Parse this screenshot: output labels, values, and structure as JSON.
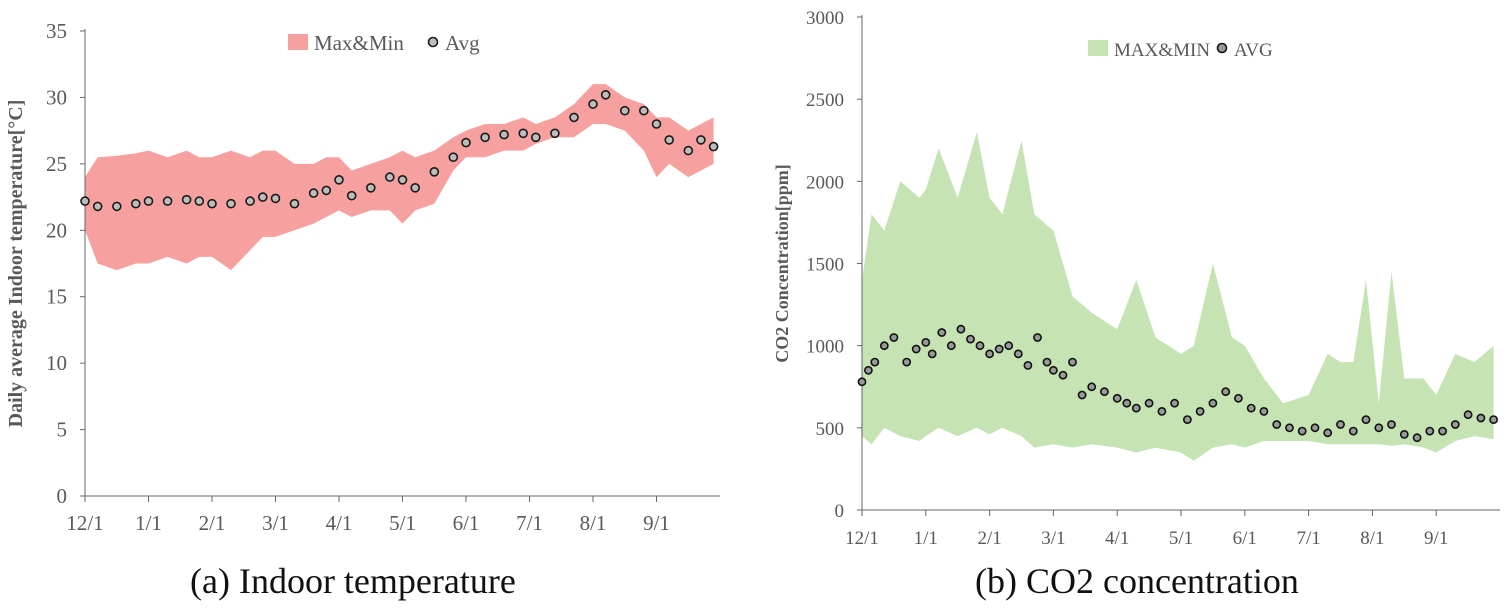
{
  "chart_data": [
    {
      "type": "area",
      "caption": "(a) Indoor temperature",
      "ylabel": "Daily average Indoor temperature[°C]",
      "xlabel": "",
      "ylim": [
        0,
        35
      ],
      "yticks": [
        0,
        5,
        10,
        15,
        20,
        25,
        30,
        35
      ],
      "xticks": [
        "12/1",
        "1/1",
        "2/1",
        "3/1",
        "4/1",
        "5/1",
        "6/1",
        "7/1",
        "8/1",
        "9/1"
      ],
      "x_domain": [
        0,
        10
      ],
      "grid": false,
      "legend": "top-center",
      "colors": {
        "band": "#f7a0a0",
        "marker": "#1a1a1a",
        "marker_fill": "#bdbdbd"
      },
      "series": [
        {
          "name": "Max&Min",
          "kind": "band",
          "x": [
            0,
            0.2,
            0.5,
            0.8,
            1.0,
            1.3,
            1.6,
            1.8,
            2.0,
            2.3,
            2.6,
            2.8,
            3.0,
            3.3,
            3.6,
            3.8,
            4.0,
            4.2,
            4.5,
            4.8,
            5.0,
            5.2,
            5.5,
            5.8,
            6.0,
            6.3,
            6.6,
            6.9,
            7.1,
            7.4,
            7.7,
            8.0,
            8.2,
            8.5,
            8.8,
            9.0,
            9.2,
            9.5,
            9.7,
            9.9
          ],
          "high": [
            24.0,
            25.5,
            25.6,
            25.8,
            26.0,
            25.5,
            26.0,
            25.5,
            25.5,
            26.0,
            25.5,
            26.0,
            26.0,
            25.0,
            25.0,
            25.5,
            25.5,
            24.5,
            25.0,
            25.5,
            26.0,
            25.5,
            26.0,
            27.0,
            27.5,
            28.0,
            28.0,
            28.5,
            28.0,
            28.5,
            29.5,
            31.0,
            31.0,
            30.0,
            29.5,
            28.5,
            28.5,
            27.5,
            28.0,
            28.5
          ],
          "low": [
            20.0,
            17.5,
            17.0,
            17.5,
            17.5,
            18.0,
            17.5,
            18.0,
            18.0,
            17.0,
            18.5,
            19.5,
            19.5,
            20.0,
            20.5,
            21.0,
            21.5,
            21.0,
            21.5,
            21.5,
            20.5,
            21.5,
            22.0,
            24.5,
            25.5,
            25.5,
            26.0,
            26.0,
            26.5,
            27.0,
            27.0,
            28.0,
            28.0,
            27.5,
            26.0,
            24.0,
            25.0,
            24.0,
            24.5,
            25.0
          ]
        },
        {
          "name": "Avg",
          "kind": "points",
          "x": [
            0,
            0.2,
            0.5,
            0.8,
            1.0,
            1.3,
            1.6,
            1.8,
            2.0,
            2.3,
            2.6,
            2.8,
            3.0,
            3.3,
            3.6,
            3.8,
            4.0,
            4.2,
            4.5,
            4.8,
            5.0,
            5.2,
            5.5,
            5.8,
            6.0,
            6.3,
            6.6,
            6.9,
            7.1,
            7.4,
            7.7,
            8.0,
            8.2,
            8.5,
            8.8,
            9.0,
            9.2,
            9.5,
            9.7,
            9.9
          ],
          "y": [
            22.2,
            21.8,
            21.8,
            22.0,
            22.2,
            22.2,
            22.3,
            22.2,
            22.0,
            22.0,
            22.2,
            22.5,
            22.4,
            22.0,
            22.8,
            23.0,
            23.8,
            22.6,
            23.2,
            24.0,
            23.8,
            23.2,
            24.4,
            25.5,
            26.6,
            27.0,
            27.2,
            27.3,
            27.0,
            27.3,
            28.5,
            29.5,
            30.2,
            29.0,
            29.0,
            28.0,
            26.8,
            26.0,
            26.8,
            26.3
          ]
        }
      ]
    },
    {
      "type": "area",
      "caption": "(b) CO2 concentration",
      "ylabel": "CO2 Concentration[ppm]",
      "xlabel": "",
      "ylim": [
        0,
        3000
      ],
      "yticks": [
        0,
        500,
        1000,
        1500,
        2000,
        2500,
        3000
      ],
      "xticks": [
        "12/1",
        "1/1",
        "2/1",
        "3/1",
        "4/1",
        "5/1",
        "6/1",
        "7/1",
        "8/1",
        "9/1"
      ],
      "x_domain": [
        0,
        10
      ],
      "grid": false,
      "legend": "top-center",
      "colors": {
        "band": "#c5e3b3",
        "marker": "#111111",
        "marker_fill": "#9a9a9a"
      },
      "series": [
        {
          "name": "MAX&MIN",
          "kind": "band",
          "x": [
            0,
            0.15,
            0.35,
            0.6,
            0.9,
            1.0,
            1.2,
            1.5,
            1.8,
            2.0,
            2.2,
            2.5,
            2.7,
            3.0,
            3.3,
            3.6,
            4.0,
            4.3,
            4.6,
            5.0,
            5.2,
            5.5,
            5.8,
            6.0,
            6.3,
            6.6,
            7.0,
            7.3,
            7.5,
            7.7,
            7.9,
            8.1,
            8.3,
            8.5,
            8.8,
            9.0,
            9.3,
            9.6,
            9.9
          ],
          "high": [
            1400,
            1800,
            1700,
            2000,
            1900,
            1950,
            2200,
            1900,
            2300,
            1900,
            1800,
            2250,
            1800,
            1700,
            1300,
            1200,
            1100,
            1400,
            1050,
            950,
            1000,
            1500,
            1050,
            1000,
            800,
            650,
            700,
            950,
            900,
            900,
            1400,
            650,
            1450,
            800,
            800,
            700,
            950,
            900,
            1000
          ],
          "low": [
            450,
            400,
            500,
            450,
            420,
            450,
            500,
            450,
            500,
            460,
            500,
            450,
            380,
            400,
            380,
            400,
            380,
            350,
            380,
            350,
            300,
            380,
            400,
            380,
            420,
            420,
            420,
            400,
            400,
            400,
            400,
            400,
            390,
            400,
            380,
            350,
            420,
            450,
            430
          ]
        },
        {
          "name": "AVG",
          "kind": "points",
          "x": [
            0,
            0.1,
            0.2,
            0.35,
            0.5,
            0.7,
            0.85,
            1.0,
            1.1,
            1.25,
            1.4,
            1.55,
            1.7,
            1.85,
            2.0,
            2.15,
            2.3,
            2.45,
            2.6,
            2.75,
            2.9,
            3.0,
            3.15,
            3.3,
            3.45,
            3.6,
            3.8,
            4.0,
            4.15,
            4.3,
            4.5,
            4.7,
            4.9,
            5.1,
            5.3,
            5.5,
            5.7,
            5.9,
            6.1,
            6.3,
            6.5,
            6.7,
            6.9,
            7.1,
            7.3,
            7.5,
            7.7,
            7.9,
            8.1,
            8.3,
            8.5,
            8.7,
            8.9,
            9.1,
            9.3,
            9.5,
            9.7,
            9.9
          ],
          "y": [
            780,
            850,
            900,
            1000,
            1050,
            900,
            980,
            1020,
            950,
            1080,
            1000,
            1100,
            1040,
            1000,
            950,
            980,
            1000,
            950,
            880,
            1050,
            900,
            850,
            820,
            900,
            700,
            750,
            720,
            680,
            650,
            620,
            650,
            600,
            650,
            550,
            600,
            650,
            720,
            680,
            620,
            600,
            520,
            500,
            480,
            500,
            470,
            520,
            480,
            550,
            500,
            520,
            460,
            440,
            480,
            480,
            520,
            580,
            560,
            550
          ]
        }
      ]
    }
  ]
}
